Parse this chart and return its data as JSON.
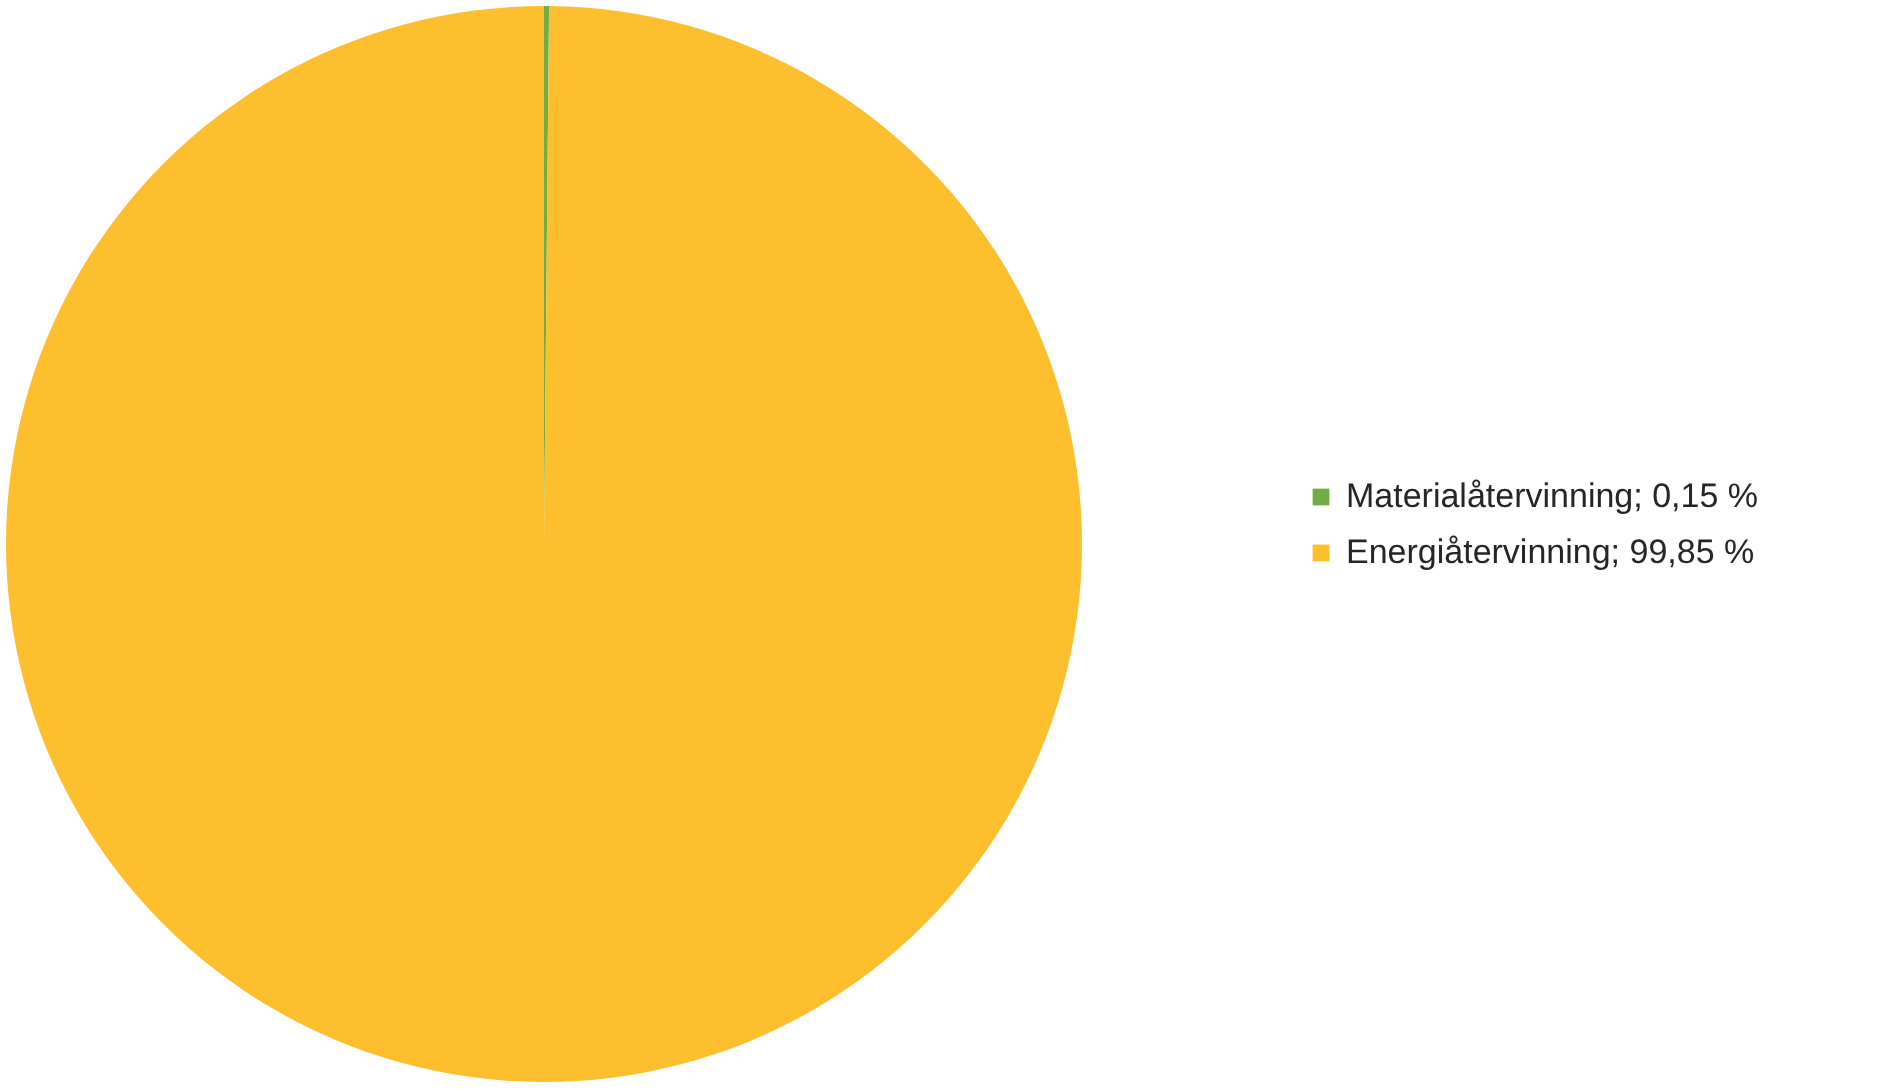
{
  "chart_data": {
    "type": "pie",
    "categories": [
      "Materialåtervinning",
      "Energiåtervinning"
    ],
    "values": [
      0.15,
      99.85
    ],
    "value_labels": [
      "0,15 %",
      "99,85 %"
    ],
    "colors": [
      "#70ad47",
      "#fdbf2d"
    ],
    "legend": "right"
  }
}
